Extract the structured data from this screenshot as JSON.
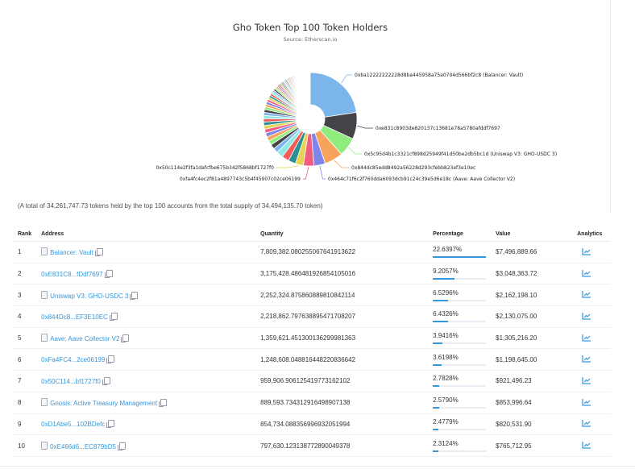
{
  "chart_data": {
    "type": "pie",
    "title": "Gho Token Top 100 Token Holders",
    "subtitle": "Source: Etherscan.io",
    "unit": "percent",
    "slices": [
      {
        "label": "0xba12222222228d8ba445958a75a0704d566bf2c8 (Balancer: Vault)",
        "value": 22.6397,
        "color": "#7cb5ec"
      },
      {
        "label": "0xe831c8903de820137c13681e78a5780afddf7697",
        "value": 9.2057,
        "color": "#434348"
      },
      {
        "label": "0x5c95d4b1c3321cf898d25949f41d50be2db5bc1d (Uniswap V3: GHO-USDC 3)",
        "value": 6.5296,
        "color": "#90ed7d"
      },
      {
        "label": "0x844dc85edd8492a56228d293cfebb823ef3e10ec",
        "value": 6.4326,
        "color": "#f7a35c"
      },
      {
        "label": "0x464c71f6c2f760dda6093dcb91c24c39e5d6e18c (Aave: Aave Collector V2)",
        "value": 3.9416,
        "color": "#8085e9"
      },
      {
        "label": "0xfa4fc4ec2f81a4897743c5b4f45907c02ce06199",
        "value": 3.6198,
        "color": "#f15c80"
      },
      {
        "label": "0x50c114e2f3fa1dafcfbe675b342f5868bf1727f0",
        "value": 2.7828,
        "color": "#e4d354"
      },
      {
        "label": "",
        "value": 2.579,
        "color": "#2b908f"
      },
      {
        "label": "",
        "value": 2.4779,
        "color": "#f45b5b"
      },
      {
        "label": "",
        "value": 2.3124,
        "color": "#91e8e1"
      }
    ],
    "palette": [
      "#7cb5ec",
      "#434348",
      "#90ed7d",
      "#f7a35c",
      "#8085e9",
      "#f15c80",
      "#e4d354",
      "#2b908f",
      "#f45b5b",
      "#91e8e1"
    ]
  },
  "summary": "(A total of 34,261,747.73 tokens held by the top 100 accounts from the total supply of 34,494,135.70 token)",
  "table": {
    "headers": {
      "rank": "Rank",
      "address": "Address",
      "quantity": "Quantity",
      "percentage": "Percentage",
      "value": "Value",
      "analytics": "Analytics"
    },
    "rows": [
      {
        "rank": "1",
        "address": "Balancer: Vault",
        "contract": true,
        "quantity": "7,809,382.080255067641913622",
        "percentage": "22.6397%",
        "pct": 22.6397,
        "value": "$7,496,889.66"
      },
      {
        "rank": "2",
        "address": "0xE831C8...fDdf7697",
        "contract": false,
        "quantity": "3,175,428.486481926854105016",
        "percentage": "9.2057%",
        "pct": 9.2057,
        "value": "$3,048,363.72"
      },
      {
        "rank": "3",
        "address": "Uniswap V3: GHO-USDC 3",
        "contract": true,
        "quantity": "2,252,324.875860889810842114",
        "percentage": "6.5296%",
        "pct": 6.5296,
        "value": "$2,162,198.10"
      },
      {
        "rank": "4",
        "address": "0x844Dc8...EF3E10EC",
        "contract": false,
        "quantity": "2,218,862.797638895471708207",
        "percentage": "6.4326%",
        "pct": 6.4326,
        "value": "$2,130,075.00"
      },
      {
        "rank": "5",
        "address": "Aave: Aave Collector V2",
        "contract": true,
        "quantity": "1,359,621.451300136299981363",
        "percentage": "3.9416%",
        "pct": 3.9416,
        "value": "$1,305,216.20"
      },
      {
        "rank": "6",
        "address": "0xFa4FC4...2ce06199",
        "contract": false,
        "quantity": "1,248,608.048816448220836642",
        "percentage": "3.6198%",
        "pct": 3.6198,
        "value": "$1,198,645.00"
      },
      {
        "rank": "7",
        "address": "0x50C114...bf1727f0",
        "contract": false,
        "quantity": "959,906.906125419773162102",
        "percentage": "2.7828%",
        "pct": 2.7828,
        "value": "$921,496.23"
      },
      {
        "rank": "8",
        "address": "Gnosis: Active Treasury Management",
        "contract": true,
        "quantity": "889,593.734312916498907138",
        "percentage": "2.5790%",
        "pct": 2.579,
        "value": "$853,996.64"
      },
      {
        "rank": "9",
        "address": "0xD1Abe5...102BDefc",
        "contract": false,
        "quantity": "854,734.088356996932051994",
        "percentage": "2.4779%",
        "pct": 2.4779,
        "value": "$820,531.90"
      },
      {
        "rank": "10",
        "address": "0xE466d6...EC879bD5",
        "contract": true,
        "quantity": "797,630.123138772890049378",
        "percentage": "2.3124%",
        "pct": 2.3124,
        "value": "$765,712.95"
      }
    ]
  },
  "icons": {
    "analytics": "line-chart-icon",
    "copy": "copy-icon",
    "contract": "document-icon"
  }
}
